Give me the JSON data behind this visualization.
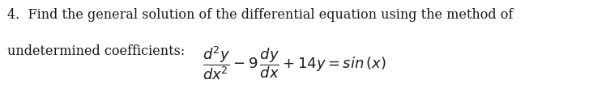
{
  "background_color": "#ffffff",
  "text_line1": "4.  Find the general solution of the differential equation using the method of",
  "text_line2": "undetermined coefficients:",
  "text_fontsize": 11.5,
  "eq_fontsize": 13,
  "text_color": "#1a1a1a",
  "fig_width": 7.27,
  "fig_height": 1.3,
  "dpi": 100
}
